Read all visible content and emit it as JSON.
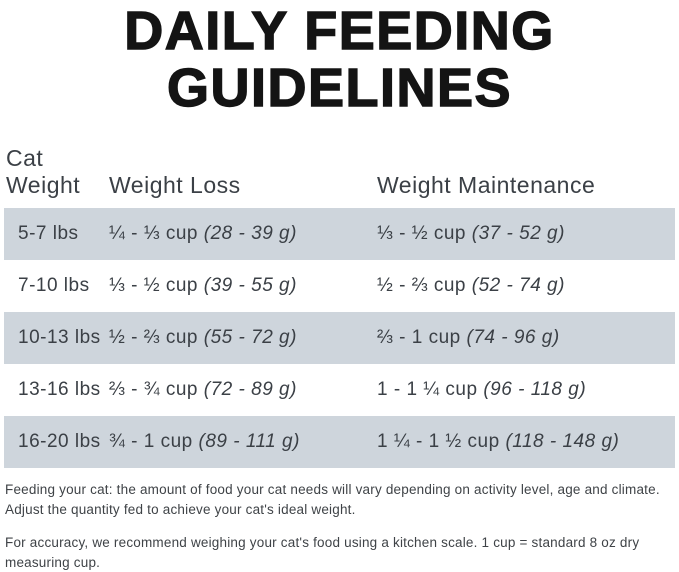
{
  "page": {
    "title_line1": "DAILY FEEDING",
    "title_line2": "GUIDELINES"
  },
  "table": {
    "headers": {
      "cat_weight_line1": "Cat",
      "cat_weight_line2": "Weight",
      "weight_loss": "Weight Loss",
      "weight_maintenance": "Weight Maintenance"
    },
    "rows": [
      {
        "weight": "5-7 lbs",
        "loss_cups": "¼ - ⅓ cup",
        "loss_grams": "(28 - 39 g)",
        "maint_cups": "⅓ - ½ cup",
        "maint_grams": "(37 - 52 g)"
      },
      {
        "weight": "7-10 lbs",
        "loss_cups": "⅓ - ½ cup",
        "loss_grams": "(39 - 55 g)",
        "maint_cups": "½ - ⅔ cup",
        "maint_grams": "(52 - 74 g)"
      },
      {
        "weight": "10-13 lbs",
        "loss_cups": "½ - ⅔ cup",
        "loss_grams": "(55 - 72 g)",
        "maint_cups": "⅔ - 1 cup",
        "maint_grams": "(74 - 96 g)"
      },
      {
        "weight": "13-16 lbs",
        "loss_cups": "⅔ - ¾ cup",
        "loss_grams": "(72 - 89 g)",
        "maint_cups": "1 - 1 ¼ cup",
        "maint_grams": "(96 - 118 g)"
      },
      {
        "weight": "16-20 lbs",
        "loss_cups": "¾ - 1 cup",
        "loss_grams": "(89 - 111 g)",
        "maint_cups": "1 ¼ - 1 ½ cup",
        "maint_grams": "(118 - 148 g)"
      }
    ]
  },
  "notes": {
    "feeding": "Feeding your cat: the amount of food your cat needs will vary depending on activity level, age and climate. Adjust the quantity fed to achieve your cat's ideal weight.",
    "accuracy": "For accuracy, we recommend weighing your cat's food using a kitchen scale. 1 cup = standard 8 oz dry measuring cup."
  },
  "colors": {
    "title": "#141414",
    "body_text": "#3b4046",
    "stripe": "#ced5dc",
    "background": "#ffffff"
  }
}
